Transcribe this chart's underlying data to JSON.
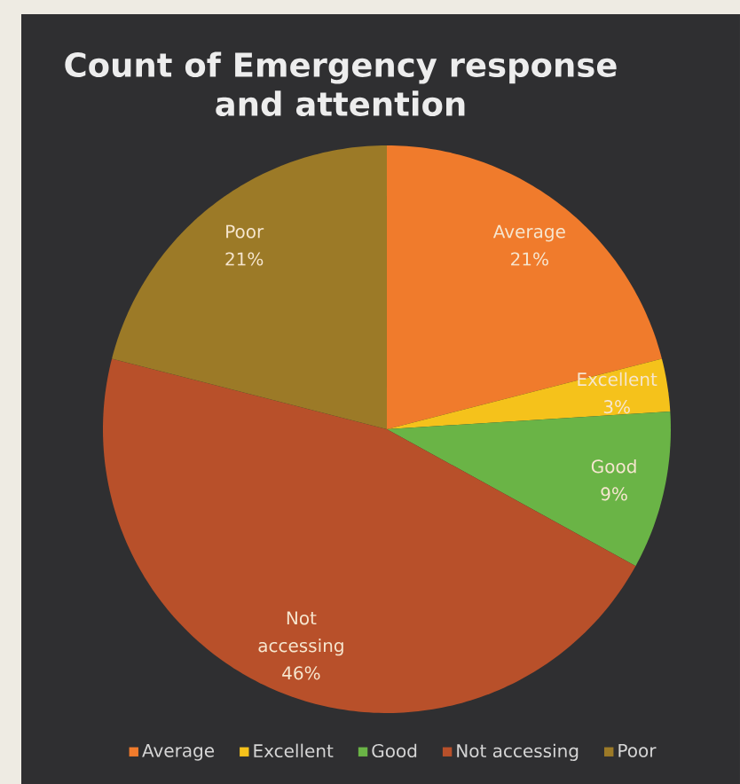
{
  "chart_data": {
    "type": "pie",
    "title": "Count of Emergency response and attention",
    "categories": [
      "Average",
      "Excellent",
      "Good",
      "Not accessing",
      "Poor"
    ],
    "values": [
      21,
      3,
      9,
      46,
      21
    ],
    "value_labels": [
      "21%",
      "3%",
      "9%",
      "46%",
      "21%"
    ],
    "colors": [
      "#f07b2c",
      "#f5c21b",
      "#6ab446",
      "#b8502a",
      "#9c7a27"
    ],
    "legend": "bottom"
  }
}
